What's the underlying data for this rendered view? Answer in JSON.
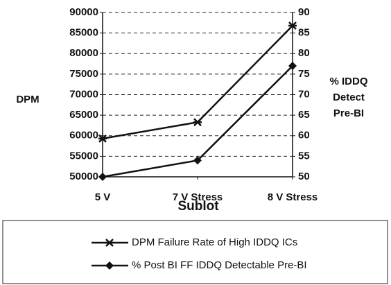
{
  "chart_data": {
    "type": "line",
    "categories": [
      "5 V",
      "7 V Stress",
      "8 V Stress"
    ],
    "series": [
      {
        "name": "DPM Failure Rate of High IDDQ ICs",
        "color": "#111111",
        "marker": "x",
        "axis": "y",
        "values": [
          59300,
          63300,
          86800
        ]
      },
      {
        "name": "% Post BI FF IDDQ Detectable Pre-BI",
        "color": "#111111",
        "marker": "diamond",
        "axis": "y2",
        "values": [
          50,
          54,
          77
        ]
      }
    ],
    "ylabel": "DPM",
    "y2label": [
      "% IDDQ",
      "Detect",
      "Pre-BI"
    ],
    "xlabel": "Sublot",
    "ylim": [
      50000,
      90000
    ],
    "yticks": [
      50000,
      55000,
      60000,
      65000,
      70000,
      75000,
      80000,
      85000,
      90000
    ],
    "y2lim": [
      50,
      90
    ],
    "y2ticks": [
      50,
      55,
      60,
      65,
      70,
      75,
      80,
      85,
      90
    ],
    "grid": true,
    "legend": "bottom"
  }
}
